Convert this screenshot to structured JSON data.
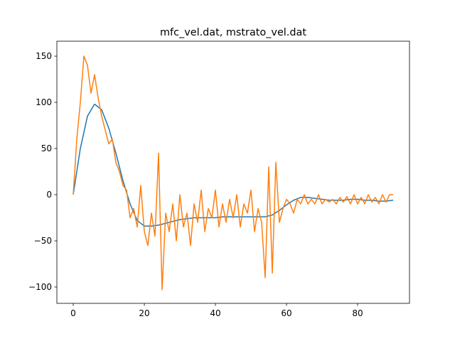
{
  "chart_data": {
    "type": "line",
    "title": "mfc_vel.dat, mstrato_vel.dat",
    "xlim": [
      -4.6,
      94.6
    ],
    "xticks": [
      0,
      20,
      40,
      60,
      80
    ],
    "ylim": [
      -117.7,
      166.2
    ],
    "yticks": [
      {
        "value": -100,
        "label": "−100"
      },
      {
        "value": -50,
        "label": "−50"
      },
      0,
      50,
      100,
      150
    ],
    "series": [
      {
        "color": "#1f77b4",
        "x": [
          0,
          2,
          4,
          6,
          8,
          10,
          12,
          14,
          16,
          18,
          20,
          22,
          24,
          26,
          28,
          30,
          32,
          34,
          36,
          38,
          40,
          42,
          44,
          46,
          48,
          50,
          52,
          54,
          56,
          58,
          60,
          62,
          64,
          66,
          68,
          70,
          72,
          74,
          76,
          78,
          80,
          82,
          84,
          86,
          88,
          90
        ],
        "values": [
          0,
          50,
          85,
          98,
          92,
          72,
          45,
          15,
          -10,
          -28,
          -34,
          -34,
          -33,
          -31,
          -29,
          -27,
          -26,
          -25,
          -25,
          -25,
          -25,
          -24,
          -24,
          -24,
          -24,
          -24,
          -24,
          -24,
          -22,
          -17,
          -11,
          -6,
          -3,
          -3,
          -4,
          -5,
          -6,
          -6,
          -6,
          -5,
          -5,
          -6,
          -6,
          -7,
          -7,
          -6
        ]
      },
      {
        "color": "#ff7f0e",
        "x": [
          0,
          1,
          2,
          3,
          4,
          5,
          6,
          7,
          8,
          9,
          10,
          11,
          12,
          13,
          14,
          15,
          16,
          17,
          18,
          19,
          20,
          21,
          22,
          23,
          24,
          25,
          26,
          27,
          28,
          29,
          30,
          31,
          32,
          33,
          34,
          35,
          36,
          37,
          38,
          39,
          40,
          41,
          42,
          43,
          44,
          45,
          46,
          47,
          48,
          49,
          50,
          51,
          52,
          53,
          54,
          55,
          56,
          57,
          58,
          59,
          60,
          61,
          62,
          63,
          64,
          65,
          66,
          67,
          68,
          69,
          70,
          71,
          72,
          73,
          74,
          75,
          76,
          77,
          78,
          79,
          80,
          81,
          82,
          83,
          84,
          85,
          86,
          87,
          88,
          89,
          90
        ],
        "values": [
          0,
          60,
          100,
          150,
          140,
          110,
          130,
          105,
          85,
          70,
          55,
          60,
          35,
          25,
          10,
          5,
          -25,
          -15,
          -35,
          10,
          -40,
          -55,
          -20,
          -45,
          45,
          -103,
          -20,
          -40,
          -10,
          -50,
          0,
          -35,
          -20,
          -55,
          -10,
          -30,
          5,
          -40,
          -15,
          -25,
          5,
          -35,
          -10,
          -30,
          -5,
          -25,
          0,
          -35,
          -10,
          -20,
          5,
          -40,
          -15,
          -30,
          -90,
          30,
          -85,
          35,
          -30,
          -15,
          -5,
          -10,
          -20,
          -5,
          -10,
          0,
          -10,
          -5,
          -10,
          0,
          -10,
          -5,
          -8,
          -5,
          -10,
          -3,
          -8,
          -2,
          -10,
          0,
          -10,
          -3,
          -10,
          0,
          -8,
          -3,
          -10,
          0,
          -8,
          0,
          0
        ]
      }
    ]
  }
}
